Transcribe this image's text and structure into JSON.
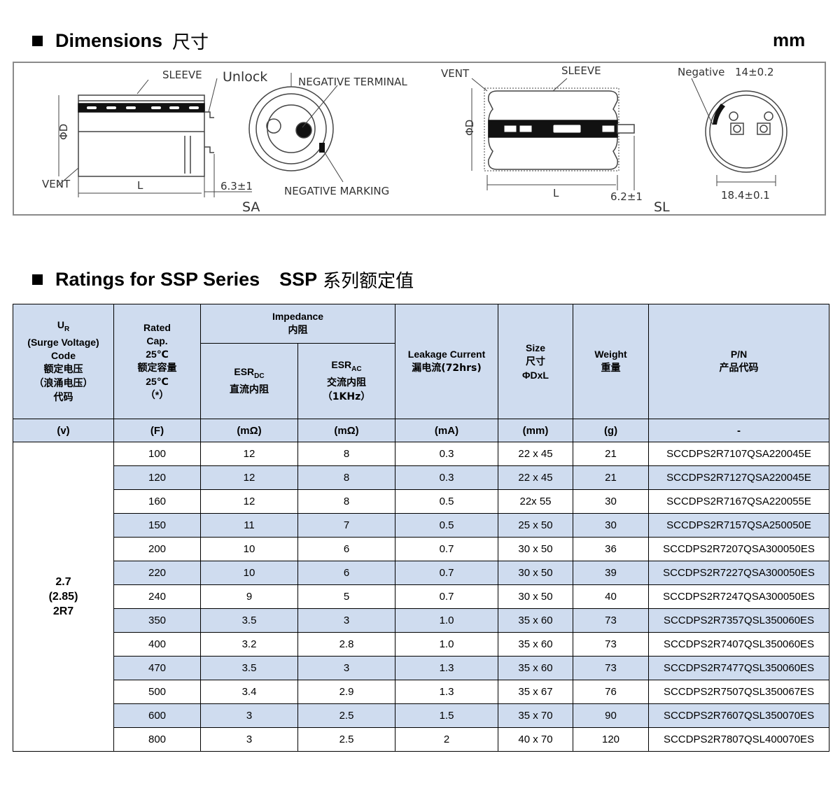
{
  "dimensions_section": {
    "title": "Dimensions",
    "title_cn": "尺寸",
    "unit": "mm"
  },
  "drawing_labels": {
    "sleeve": "SLEEVE",
    "unlock": "Unlock",
    "negative_terminal": "NEGATIVE TERMINAL",
    "negative_marking": "NEGATIVE MARKING",
    "vent": "VENT",
    "phi_d": "ΦD",
    "length": "L",
    "sa_offset": "6.3±1",
    "sa": "SA",
    "sl_offset": "6.2±1",
    "sl": "SL",
    "negative": "Negative",
    "dim_14": "14±0.2",
    "dim_184": "18.4±0.1"
  },
  "ratings_section": {
    "title": "Ratings for SSP Series",
    "title_b": "SSP",
    "title_cn": "系列额定值"
  },
  "table": {
    "col_ur": {
      "l1": "U",
      "sub": "R",
      "l2": "(Surge Voltage)",
      "l3": "Code",
      "l4": "额定电压",
      "l5": "（浪涌电压）",
      "l6": "代码"
    },
    "col_cap": {
      "l1": "Rated",
      "l2": "Cap.",
      "l3": "25℃",
      "l4": "额定容量",
      "l5": "25℃",
      "l6": "（*）"
    },
    "col_imp": {
      "l1": "Impedance",
      "l2": "内阻"
    },
    "col_esrdc": {
      "l1": "ESR",
      "sub": "DC",
      "l2": "直流内阻"
    },
    "col_esrac": {
      "l1": "ESR",
      "sub": "AC",
      "l2": "交流内阻",
      "l3": "（1KHz）"
    },
    "col_leak": {
      "l1": "Leakage Current",
      "l2": "漏电流(72hrs)"
    },
    "col_size": {
      "l1": "Size",
      "l2": "尺寸",
      "l3": "ΦDxL"
    },
    "col_weight": {
      "l1": "Weight",
      "l2": "重量"
    },
    "col_pn": {
      "l1": "P/N",
      "l2": "产品代码"
    },
    "units": [
      "(v)",
      "(F)",
      "(mΩ)",
      "(mΩ)",
      "(mA)",
      "(mm)",
      "(g)",
      "-"
    ],
    "voltage": {
      "l1": "2.7",
      "l2": "(2.85)",
      "l3": "2R7"
    },
    "rows": [
      {
        "cap": "100",
        "esr_dc": "12",
        "esr_ac": "8",
        "leak": "0.3",
        "size": "22 x 45",
        "weight": "21",
        "pn": "SCCDPS2R7107QSA220045E"
      },
      {
        "cap": "120",
        "esr_dc": "12",
        "esr_ac": "8",
        "leak": "0.3",
        "size": "22 x 45",
        "weight": "21",
        "pn": "SCCDPS2R7127QSA220045E"
      },
      {
        "cap": "160",
        "esr_dc": "12",
        "esr_ac": "8",
        "leak": "0.5",
        "size": "22x 55",
        "weight": "30",
        "pn": "SCCDPS2R7167QSA220055E"
      },
      {
        "cap": "150",
        "esr_dc": "11",
        "esr_ac": "7",
        "leak": "0.5",
        "size": "25 x 50",
        "weight": "30",
        "pn": "SCCDPS2R7157QSA250050E"
      },
      {
        "cap": "200",
        "esr_dc": "10",
        "esr_ac": "6",
        "leak": "0.7",
        "size": "30 x 50",
        "weight": "36",
        "pn": "SCCDPS2R7207QSA300050ES"
      },
      {
        "cap": "220",
        "esr_dc": "10",
        "esr_ac": "6",
        "leak": "0.7",
        "size": "30 x 50",
        "weight": "39",
        "pn": "SCCDPS2R7227QSA300050ES"
      },
      {
        "cap": "240",
        "esr_dc": "9",
        "esr_ac": "5",
        "leak": "0.7",
        "size": "30 x 50",
        "weight": "40",
        "pn": "SCCDPS2R7247QSA300050ES"
      },
      {
        "cap": "350",
        "esr_dc": "3.5",
        "esr_ac": "3",
        "leak": "1.0",
        "size": "35 x 60",
        "weight": "73",
        "pn": "SCCDPS2R7357QSL350060ES"
      },
      {
        "cap": "400",
        "esr_dc": "3.2",
        "esr_ac": "2.8",
        "leak": "1.0",
        "size": "35 x 60",
        "weight": "73",
        "pn": "SCCDPS2R7407QSL350060ES"
      },
      {
        "cap": "470",
        "esr_dc": "3.5",
        "esr_ac": "3",
        "leak": "1.3",
        "size": "35 x 60",
        "weight": "73",
        "pn": "SCCDPS2R7477QSL350060ES"
      },
      {
        "cap": "500",
        "esr_dc": "3.4",
        "esr_ac": "2.9",
        "leak": "1.3",
        "size": "35 x 67",
        "weight": "76",
        "pn": "SCCDPS2R7507QSL350067ES"
      },
      {
        "cap": "600",
        "esr_dc": "3",
        "esr_ac": "2.5",
        "leak": "1.5",
        "size": "35 x 70",
        "weight": "90",
        "pn": "SCCDPS2R7607QSL350070ES"
      },
      {
        "cap": "800",
        "esr_dc": "3",
        "esr_ac": "2.5",
        "leak": "2",
        "size": "40 x 70",
        "weight": "120",
        "pn": "SCCDPS2R7807QSL400070ES"
      }
    ]
  },
  "colors": {
    "header_bg": "#cfdcef",
    "alt_row_bg": "#cfdcef",
    "border": "#000000"
  }
}
